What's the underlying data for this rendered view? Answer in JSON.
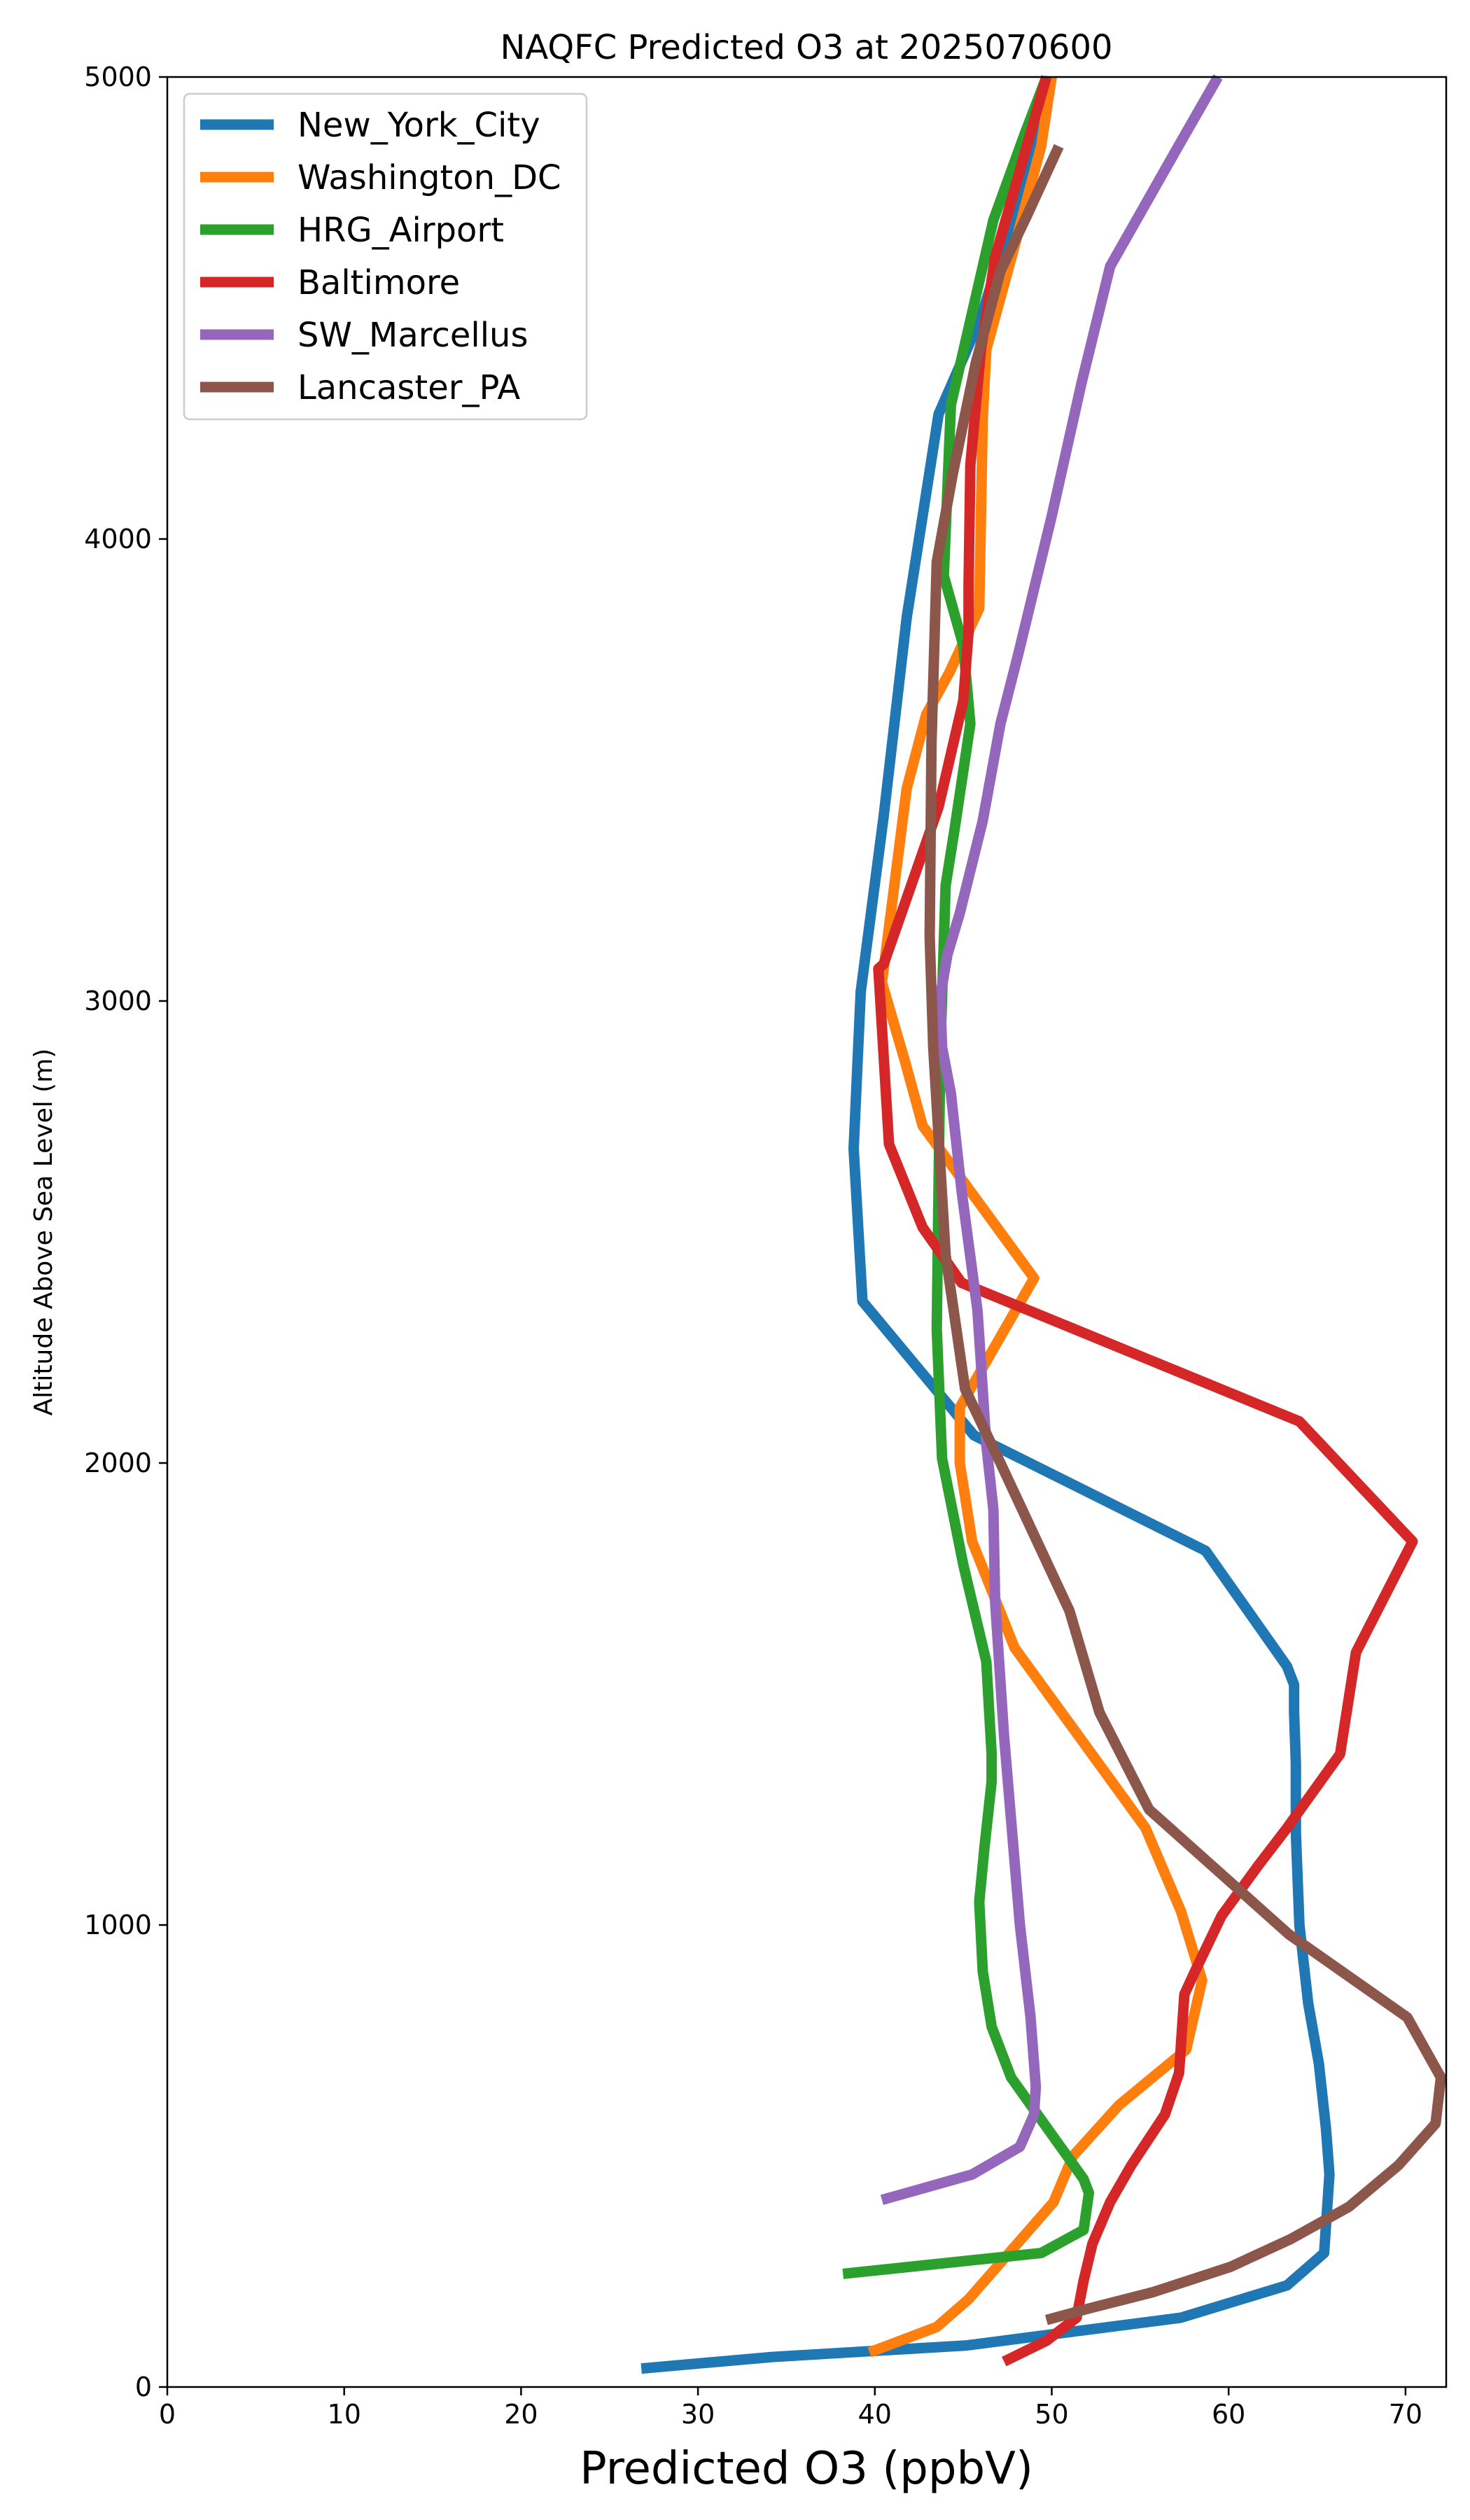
{
  "chart_data": {
    "type": "line",
    "title": "NAQFC Predicted O3 at 2025070600",
    "xlabel": "Predicted O3 (ppbV)",
    "ylabel": "Altitude Above Sea Level (m)",
    "xlim": [
      0,
      72.3
    ],
    "ylim": [
      0,
      5000
    ],
    "xticks": [
      "0",
      "10",
      "20",
      "30",
      "40",
      "50",
      "60",
      "70"
    ],
    "yticks": [
      "0",
      "1000",
      "2000",
      "3000",
      "4000",
      "5000"
    ],
    "grid": false,
    "legend": "top-left",
    "series": [
      {
        "name": "New_York_City",
        "color": "#1f77b4",
        "x": [
          26.8,
          34.2,
          45.2,
          57.3,
          63.3,
          65.4,
          65.7,
          65.5,
          65.1,
          64.5,
          64.0,
          63.8,
          63.8,
          63.7,
          63.7,
          63.3,
          58.7,
          45.6,
          39.3,
          38.8,
          39.2,
          40.5,
          41.8,
          43.6,
          46.0,
          47.8,
          49.9
        ],
        "y": [
          40,
          65,
          90,
          150,
          220,
          290,
          460,
          560,
          700,
          830,
          1000,
          1200,
          1350,
          1460,
          1520,
          1560,
          1810,
          2060,
          2350,
          2680,
          3020,
          3400,
          3830,
          4270,
          4480,
          4700,
          5000
        ]
      },
      {
        "name": "Washington_DC",
        "color": "#ff7f0e",
        "x": [
          39.7,
          43.5,
          45.3,
          48.5,
          50.1,
          51.2,
          53.8,
          57.6,
          58.5,
          57.3,
          55.3,
          47.9,
          45.5,
          44.8,
          44.8,
          49.0,
          42.7,
          41.7,
          40.4,
          41.8,
          42.9,
          44.2,
          45.9,
          46.1,
          46.3,
          47.8,
          49.4,
          49.8,
          50.0
        ],
        "y": [
          75,
          130,
          190,
          330,
          400,
          500,
          610,
          730,
          880,
          1030,
          1210,
          1600,
          1830,
          2000,
          2120,
          2400,
          2730,
          2870,
          3040,
          3460,
          3620,
          3710,
          3850,
          4260,
          4410,
          4620,
          4850,
          4950,
          5000
        ]
      },
      {
        "name": "HRG_Airport",
        "color": "#2ca02c",
        "x": [
          38.2,
          49.4,
          51.8,
          52.1,
          51.8,
          47.7,
          46.6,
          46.1,
          45.9,
          46.2,
          46.6,
          46.6,
          46.3,
          45.0,
          43.8,
          43.5,
          43.6,
          43.7,
          44.0,
          44.5,
          45.4,
          45.0,
          43.9,
          44.3,
          46.7,
          48.5,
          49.2,
          49.7
        ],
        "y": [
          245,
          290,
          340,
          420,
          450,
          670,
          780,
          900,
          1050,
          1170,
          1310,
          1370,
          1570,
          1780,
          2010,
          2290,
          2600,
          2890,
          3250,
          3370,
          3600,
          3770,
          3920,
          4290,
          4690,
          4880,
          4950,
          5000
        ]
      },
      {
        "name": "Baltimore",
        "color": "#d62728",
        "x": [
          47.3,
          49.7,
          51.4,
          51.8,
          52.3,
          53.3,
          54.5,
          56.4,
          57.2,
          57.3,
          57.5,
          58.1,
          59.6,
          61.7,
          63.3,
          66.3,
          67.2,
          70.4,
          64.0,
          44.9,
          42.7,
          40.8,
          40.2,
          40.5,
          43.6,
          45.0,
          45.3,
          45.3,
          45.4,
          46.0,
          46.8,
          49.7
        ],
        "y": [
          55,
          100,
          150,
          230,
          310,
          400,
          480,
          590,
          680,
          740,
          850,
          900,
          1020,
          1130,
          1210,
          1370,
          1590,
          1830,
          2090,
          2390,
          2510,
          2690,
          3070,
          3080,
          3420,
          3650,
          3800,
          3900,
          4160,
          4410,
          4610,
          5000
        ]
      },
      {
        "name": "SW_Marcellus",
        "color": "#9467bd",
        "x": [
          40.4,
          45.5,
          48.2,
          49.0,
          49.1,
          48.8,
          48.2,
          47.3,
          46.8,
          46.7,
          46.3,
          45.8,
          44.9,
          44.3,
          43.8,
          43.7,
          44.1,
          44.8,
          46.1,
          47.1,
          48.1,
          50.0,
          51.7,
          53.3,
          57.3,
          59.4
        ],
        "y": [
          405,
          460,
          520,
          590,
          650,
          800,
          1000,
          1410,
          1700,
          1900,
          2040,
          2330,
          2590,
          2800,
          2900,
          3010,
          3100,
          3190,
          3390,
          3600,
          3750,
          4050,
          4340,
          4590,
          4860,
          5000
        ]
      },
      {
        "name": "Lancaster_PA",
        "color": "#8c564b",
        "x": [
          49.7,
          52.1,
          55.7,
          60.1,
          63.5,
          66.8,
          69.6,
          71.7,
          72.0,
          70.1,
          63.4,
          55.5,
          52.7,
          51.0,
          47.1,
          45.1,
          44.0,
          43.3,
          43.1,
          43.2,
          43.5,
          44.4,
          45.7,
          47.1,
          48.6,
          50.4
        ],
        "y": [
          145,
          170,
          205,
          260,
          320,
          390,
          480,
          570,
          670,
          800,
          980,
          1250,
          1460,
          1680,
          2000,
          2160,
          2450,
          2900,
          3140,
          3560,
          3950,
          4140,
          4380,
          4580,
          4700,
          4850
        ]
      }
    ]
  }
}
